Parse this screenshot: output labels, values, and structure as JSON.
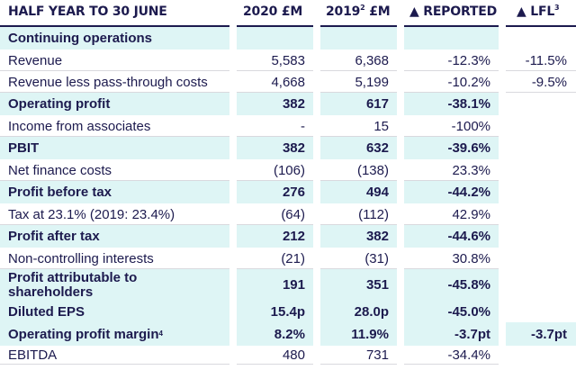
{
  "header": {
    "col_label": "HALF YEAR TO 30 JUNE",
    "col_2020": "2020 £M",
    "col_2019": "2019",
    "col_2019_sup": "2",
    "col_2019_suffix": " £M",
    "col_reported": "▲ REPORTED",
    "col_lfl": "▲ LFL",
    "col_lfl_sup": "3"
  },
  "section_title": "Continuing operations",
  "rows": [
    {
      "label": "Revenue",
      "v2020": "5,583",
      "v2019": "6,368",
      "reported": "-12.3%",
      "lfl": "-11.5%"
    },
    {
      "label": "Revenue less pass-through costs",
      "v2020": "4,668",
      "v2019": "5,199",
      "reported": "-10.2%",
      "lfl": "-9.5%"
    },
    {
      "label": "Operating profit",
      "v2020": "382",
      "v2019": "617",
      "reported": "-38.1%",
      "lfl": ""
    },
    {
      "label": "Income from associates",
      "v2020": "-",
      "v2019": "15",
      "reported": "-100%",
      "lfl": ""
    },
    {
      "label": "PBIT",
      "v2020": "382",
      "v2019": "632",
      "reported": "-39.6%",
      "lfl": ""
    },
    {
      "label": "Net finance costs",
      "v2020": "(106)",
      "v2019": "(138)",
      "reported": "23.3%",
      "lfl": ""
    },
    {
      "label": "Profit before tax",
      "v2020": "276",
      "v2019": "494",
      "reported": "-44.2%",
      "lfl": ""
    },
    {
      "label": "Tax at 23.1% (2019: 23.4%)",
      "v2020": "(64)",
      "v2019": "(112)",
      "reported": "42.9%",
      "lfl": ""
    },
    {
      "label": "Profit after tax",
      "v2020": "212",
      "v2019": "382",
      "reported": "-44.6%",
      "lfl": ""
    },
    {
      "label": "Non-controlling interests",
      "v2020": "(21)",
      "v2019": "(31)",
      "reported": "30.8%",
      "lfl": ""
    },
    {
      "label": "Profit attributable to shareholders",
      "v2020": "191",
      "v2019": "351",
      "reported": "-45.8%",
      "lfl": ""
    },
    {
      "label": "Diluted EPS",
      "v2020": "15.4p",
      "v2019": "28.0p",
      "reported": "-45.0%",
      "lfl": ""
    },
    {
      "label": "Operating profit margin",
      "label_sup": "4",
      "v2020": "8.2%",
      "v2019": "11.9%",
      "reported": "-3.7pt",
      "lfl": "-3.7pt"
    },
    {
      "label": "EBITDA",
      "v2020": "480",
      "v2019": "731",
      "reported": "-34.4%",
      "lfl": ""
    }
  ]
}
